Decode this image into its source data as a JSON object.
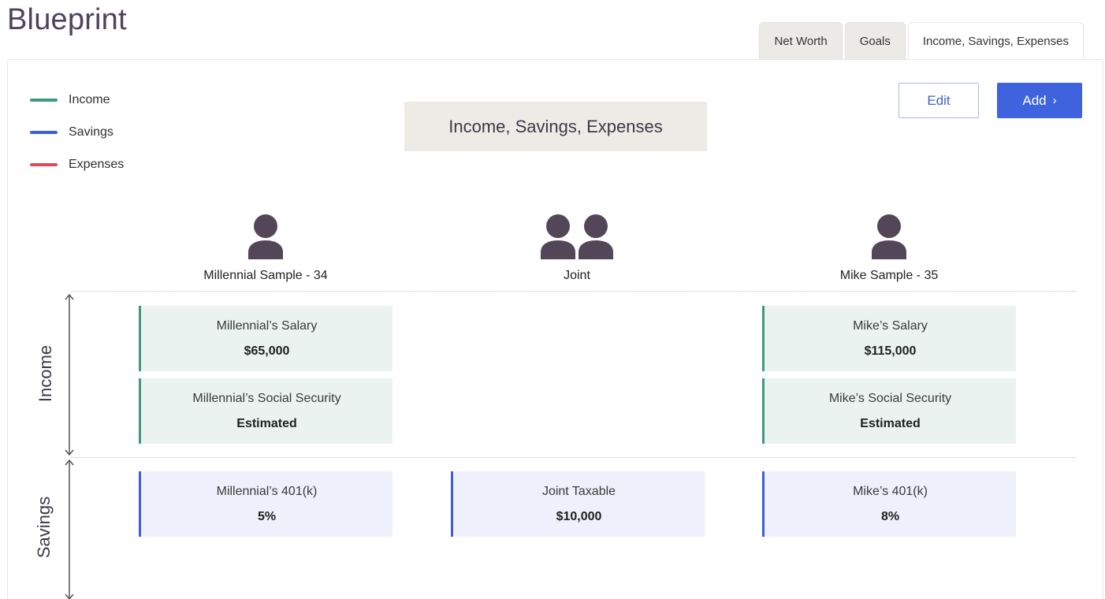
{
  "app": {
    "title": "Blueprint"
  },
  "tabs": [
    {
      "label": "Net Worth"
    },
    {
      "label": "Goals"
    },
    {
      "label": "Income, Savings, Expenses"
    }
  ],
  "legend": [
    {
      "label": "Income",
      "color": "#3f9a79"
    },
    {
      "label": "Savings",
      "color": "#3a5fd9"
    },
    {
      "label": "Expenses",
      "color": "#e2485a"
    }
  ],
  "section_title": "Income, Savings, Expenses",
  "actions": {
    "edit_label": "Edit",
    "add_label": "Add",
    "add_chevron": "›"
  },
  "people": [
    {
      "label": "Millennial Sample - 34",
      "icon": "person-icon"
    },
    {
      "label": "Joint",
      "icon": "people-icon"
    },
    {
      "label": "Mike Sample - 35",
      "icon": "person-icon"
    }
  ],
  "axes": {
    "income": "Income",
    "savings": "Savings"
  },
  "income_cards": [
    {
      "title": "Millennial’s Salary",
      "value": "$65,000"
    },
    {
      "title": "Mike’s Salary",
      "value": "$115,000"
    },
    {
      "title": "Millennial’s Social Security",
      "value": "Estimated"
    },
    {
      "title": "Mike’s Social Security",
      "value": "Estimated"
    }
  ],
  "savings_cards": [
    {
      "title": "Millennial’s 401(k)",
      "value": "5%"
    },
    {
      "title": "Joint Taxable",
      "value": "$10,000"
    },
    {
      "title": "Mike’s 401(k)",
      "value": "8%"
    }
  ],
  "colors": {
    "avatar": "#544659",
    "accent": "#3f63df",
    "title": "#4f4160"
  }
}
